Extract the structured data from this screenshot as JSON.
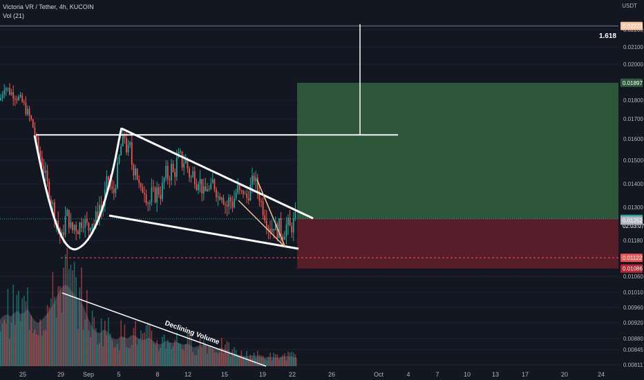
{
  "header": {
    "title": "Victoria VR / Tether, 4h, KUCOIN",
    "volume_label": "Vol (21)",
    "currency": "USDT"
  },
  "chart_data": {
    "type": "candlestick",
    "symbol": "Victoria VR / Tether",
    "interval": "4h",
    "exchange": "KUCOIN",
    "y_ticks": [
      0.022,
      0.021,
      0.02,
      0.018,
      0.017,
      0.016,
      0.015,
      0.014,
      0.013,
      0.0118,
      0.0106,
      0.0101,
      0.0096,
      0.0092,
      0.0088,
      0.00845,
      0.00811
    ],
    "x_ticks": [
      "25",
      "29",
      "Sep",
      "5",
      "8",
      "12",
      "15",
      "19",
      "22",
      "26",
      "Oct",
      "4",
      "7",
      "10",
      "13",
      "17",
      "20",
      "24"
    ],
    "price_path": [
      [
        0,
        0.018
      ],
      [
        3,
        0.0184
      ],
      [
        6,
        0.0188
      ],
      [
        9,
        0.0187
      ],
      [
        13,
        0.0185
      ],
      [
        17,
        0.0184
      ],
      [
        22,
        0.0183
      ],
      [
        27,
        0.0181
      ],
      [
        32,
        0.0179
      ],
      [
        36,
        0.0176
      ],
      [
        40,
        0.0173
      ],
      [
        44,
        0.017
      ],
      [
        47,
        0.0167
      ],
      [
        50,
        0.0163
      ],
      [
        53,
        0.0158
      ],
      [
        57,
        0.0153
      ],
      [
        61,
        0.0149
      ],
      [
        65,
        0.0144
      ],
      [
        69,
        0.0139
      ],
      [
        73,
        0.0134
      ],
      [
        77,
        0.013
      ],
      [
        81,
        0.0126
      ],
      [
        85,
        0.0122
      ],
      [
        89,
        0.0118
      ],
      [
        92,
        0.0122
      ],
      [
        96,
        0.0128
      ],
      [
        100,
        0.0125
      ],
      [
        104,
        0.0121
      ],
      [
        108,
        0.0124
      ],
      [
        112,
        0.0122
      ],
      [
        116,
        0.0124
      ],
      [
        120,
        0.0126
      ],
      [
        124,
        0.0124
      ],
      [
        128,
        0.0122
      ],
      [
        132,
        0.0126
      ],
      [
        136,
        0.0124
      ],
      [
        140,
        0.0127
      ],
      [
        144,
        0.0131
      ],
      [
        148,
        0.0129
      ],
      [
        152,
        0.0136
      ],
      [
        156,
        0.0143
      ],
      [
        160,
        0.0138
      ],
      [
        164,
        0.0135
      ],
      [
        168,
        0.0142
      ],
      [
        172,
        0.015
      ],
      [
        176,
        0.0158
      ],
      [
        180,
        0.0162
      ],
      [
        184,
        0.0153
      ],
      [
        188,
        0.0157
      ],
      [
        192,
        0.0145
      ],
      [
        196,
        0.0148
      ],
      [
        200,
        0.014
      ],
      [
        204,
        0.0136
      ],
      [
        208,
        0.0139
      ],
      [
        212,
        0.0134
      ],
      [
        216,
        0.0131
      ],
      [
        220,
        0.0137
      ],
      [
        224,
        0.0134
      ],
      [
        228,
        0.0138
      ],
      [
        232,
        0.0135
      ],
      [
        236,
        0.014
      ],
      [
        240,
        0.0145
      ],
      [
        244,
        0.0142
      ],
      [
        248,
        0.0147
      ],
      [
        252,
        0.0143
      ],
      [
        256,
        0.015
      ],
      [
        260,
        0.0153
      ],
      [
        264,
        0.0148
      ],
      [
        268,
        0.0151
      ],
      [
        272,
        0.0146
      ],
      [
        276,
        0.0142
      ],
      [
        280,
        0.0145
      ],
      [
        284,
        0.014
      ],
      [
        288,
        0.0143
      ],
      [
        292,
        0.0138
      ],
      [
        296,
        0.0135
      ],
      [
        300,
        0.0139
      ],
      [
        304,
        0.0136
      ],
      [
        308,
        0.0141
      ],
      [
        312,
        0.0138
      ],
      [
        316,
        0.0134
      ],
      [
        320,
        0.0137
      ],
      [
        324,
        0.0133
      ],
      [
        328,
        0.013
      ],
      [
        332,
        0.0134
      ],
      [
        336,
        0.0131
      ],
      [
        340,
        0.0135
      ],
      [
        344,
        0.0138
      ],
      [
        348,
        0.0135
      ],
      [
        352,
        0.0137
      ],
      [
        356,
        0.0133
      ],
      [
        360,
        0.0136
      ],
      [
        364,
        0.014
      ],
      [
        368,
        0.0143
      ],
      [
        372,
        0.0138
      ],
      [
        376,
        0.0134
      ],
      [
        380,
        0.013
      ],
      [
        384,
        0.0127
      ],
      [
        388,
        0.0124
      ],
      [
        392,
        0.0122
      ],
      [
        396,
        0.0124
      ],
      [
        400,
        0.0121
      ],
      [
        404,
        0.0123
      ],
      [
        408,
        0.012
      ],
      [
        412,
        0.0122
      ],
      [
        416,
        0.0124
      ],
      [
        420,
        0.0122
      ],
      [
        424,
        0.0124
      ],
      [
        428,
        0.0126
      ]
    ],
    "volume_path": [
      [
        0,
        0.55
      ],
      [
        8,
        0.62
      ],
      [
        16,
        0.58
      ],
      [
        24,
        0.66
      ],
      [
        32,
        0.6
      ],
      [
        40,
        0.68
      ],
      [
        48,
        0.55
      ],
      [
        56,
        0.5
      ],
      [
        64,
        0.58
      ],
      [
        72,
        0.65
      ],
      [
        80,
        0.78
      ],
      [
        88,
        0.92
      ],
      [
        96,
        0.97
      ],
      [
        104,
        0.88
      ],
      [
        112,
        0.8
      ],
      [
        120,
        0.72
      ],
      [
        128,
        0.55
      ],
      [
        136,
        0.42
      ],
      [
        144,
        0.38
      ],
      [
        152,
        0.45
      ],
      [
        160,
        0.35
      ],
      [
        168,
        0.3
      ],
      [
        176,
        0.36
      ],
      [
        184,
        0.32
      ],
      [
        192,
        0.38
      ],
      [
        200,
        0.33
      ],
      [
        208,
        0.3
      ],
      [
        216,
        0.34
      ],
      [
        224,
        0.28
      ],
      [
        232,
        0.25
      ],
      [
        240,
        0.3
      ],
      [
        248,
        0.27
      ],
      [
        256,
        0.29
      ],
      [
        264,
        0.25
      ],
      [
        272,
        0.27
      ],
      [
        280,
        0.22
      ],
      [
        288,
        0.24
      ],
      [
        296,
        0.26
      ],
      [
        304,
        0.22
      ],
      [
        312,
        0.2
      ],
      [
        320,
        0.22
      ],
      [
        328,
        0.19
      ],
      [
        336,
        0.16
      ],
      [
        344,
        0.14
      ],
      [
        352,
        0.12
      ],
      [
        360,
        0.12
      ],
      [
        368,
        0.13
      ],
      [
        376,
        0.11
      ],
      [
        384,
        0.1
      ],
      [
        392,
        0.11
      ],
      [
        400,
        0.1
      ],
      [
        408,
        0.11
      ],
      [
        416,
        0.12
      ],
      [
        424,
        0.11
      ],
      [
        430,
        0.1
      ]
    ],
    "markers": {
      "fib_level": 0.02223,
      "take_profit": 0.01897,
      "current_price": 0.01258,
      "previous_close": 0.01252,
      "stop_loss": 0.01122,
      "position_low": 0.01086,
      "breakout_level": 0.0162,
      "cup_low": 0.0118
    },
    "annotations": {
      "fib_ratio": "1.618",
      "volume_note": "Declining Volume",
      "countdown": "02:03:07"
    },
    "colors": {
      "up": "#26a69a",
      "down": "#ef5350",
      "background": "#131722",
      "profit_zone": "#2f5a3c",
      "loss_zone": "#5b1f2b",
      "drawing": "#ffffff",
      "trendline_channel": "#f2c49b"
    }
  }
}
